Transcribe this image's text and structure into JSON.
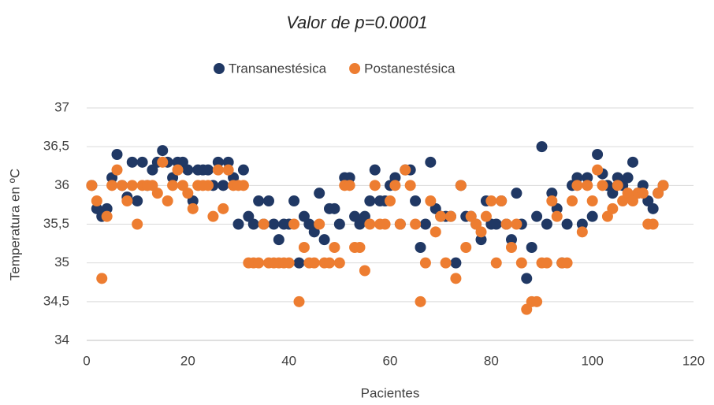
{
  "chart_data": {
    "type": "scatter",
    "title": "Valor de p=0.0001",
    "x_label": "Pacientes",
    "y_label": "Temperatura en ºC",
    "x": [
      1,
      2,
      3,
      4,
      5,
      6,
      7,
      8,
      9,
      10,
      11,
      12,
      13,
      14,
      15,
      16,
      17,
      18,
      19,
      20,
      21,
      22,
      23,
      24,
      25,
      26,
      27,
      28,
      29,
      30,
      31,
      32,
      33,
      34,
      35,
      36,
      37,
      38,
      39,
      40,
      41,
      42,
      43,
      44,
      45,
      46,
      47,
      48,
      49,
      50,
      51,
      52,
      53,
      54,
      55,
      56,
      57,
      58,
      59,
      60,
      61,
      62,
      63,
      64,
      65,
      66,
      67,
      68,
      69,
      70,
      71,
      72,
      73,
      74,
      75,
      76,
      77,
      78,
      79,
      80,
      81,
      82,
      83,
      84,
      85,
      86,
      87,
      88,
      89,
      90,
      91,
      92,
      93,
      94,
      95,
      96,
      97,
      98,
      99,
      100,
      101,
      102,
      103,
      104,
      105,
      106,
      107,
      108,
      109,
      110,
      111,
      112,
      113,
      114
    ],
    "series": [
      {
        "name": "Transanestésica",
        "color": "#203864",
        "values": [
          36,
          35.7,
          35.6,
          35.7,
          36.1,
          36.4,
          36,
          35.85,
          36.3,
          35.8,
          36.3,
          36,
          36.2,
          36.3,
          36.45,
          36.3,
          36.1,
          36.3,
          36.3,
          36.2,
          35.8,
          36.2,
          36.2,
          36.2,
          36,
          36.3,
          36,
          36.3,
          36.1,
          35.5,
          36.2,
          35.6,
          35.5,
          35.8,
          35.5,
          35.8,
          35.5,
          35.3,
          35.5,
          35.5,
          35.8,
          35,
          35.6,
          35.5,
          35.4,
          35.9,
          35.3,
          35.7,
          35.7,
          35.5,
          36.1,
          36.1,
          35.6,
          35.5,
          35.6,
          35.8,
          36.2,
          35.8,
          35.8,
          36,
          36.1,
          35.5,
          36.2,
          36.2,
          35.8,
          35.2,
          35.5,
          36.3,
          35.7,
          35.6,
          35.6,
          35.6,
          35,
          36,
          35.6,
          35.6,
          35.5,
          35.3,
          35.8,
          35.5,
          35.5,
          35.8,
          35.5,
          35.3,
          35.9,
          35.5,
          34.8,
          35.2,
          35.6,
          36.5,
          35.5,
          35.9,
          35.7,
          35,
          35.5,
          36,
          36.1,
          35.5,
          36.1,
          35.6,
          36.4,
          36.15,
          36,
          35.9,
          36.1,
          36,
          36.1,
          36.3,
          35.9,
          36,
          35.8,
          35.7,
          35.9,
          36
        ]
      },
      {
        "name": "Postanestésica",
        "color": "#ed7d31",
        "values": [
          36,
          35.8,
          34.8,
          35.6,
          36,
          36.2,
          36,
          35.8,
          36,
          35.5,
          36,
          36,
          36,
          35.9,
          36.3,
          35.8,
          36,
          36.2,
          36,
          35.9,
          35.7,
          36,
          36,
          36,
          35.6,
          36.2,
          35.7,
          36.2,
          36,
          36,
          36,
          35,
          35,
          35,
          35.5,
          35,
          35,
          35,
          35,
          35,
          35.5,
          34.5,
          35.2,
          35,
          35,
          35.5,
          35,
          35,
          35.2,
          35,
          36,
          36,
          35.2,
          35.2,
          34.9,
          35.5,
          36,
          35.5,
          35.5,
          35.8,
          36,
          35.5,
          36.2,
          36,
          35.5,
          34.5,
          35,
          35.8,
          35.4,
          35.6,
          35,
          35.6,
          34.8,
          36,
          35.2,
          35.6,
          35.5,
          35.4,
          35.6,
          35.8,
          35,
          35.8,
          35.5,
          35.2,
          35.5,
          35,
          34.4,
          34.5,
          34.5,
          35,
          35,
          35.8,
          35.6,
          35,
          35,
          35.8,
          36,
          35.4,
          36,
          35.8,
          36.2,
          36,
          35.6,
          35.7,
          36,
          35.8,
          35.9,
          35.8,
          35.9,
          35.9,
          35.5,
          35.5,
          35.9,
          36
        ]
      }
    ],
    "xlim": [
      0,
      120
    ],
    "xticks": [
      0,
      20,
      40,
      60,
      80,
      100,
      120
    ],
    "ylim": [
      34,
      37
    ],
    "yticks": [
      34,
      {
        "value": 34.5,
        "label": "34,5"
      },
      35,
      {
        "value": 35.5,
        "label": "35,5"
      },
      36,
      {
        "value": 36.5,
        "label": "36,5"
      },
      37
    ],
    "grid": true,
    "legend": "top"
  }
}
